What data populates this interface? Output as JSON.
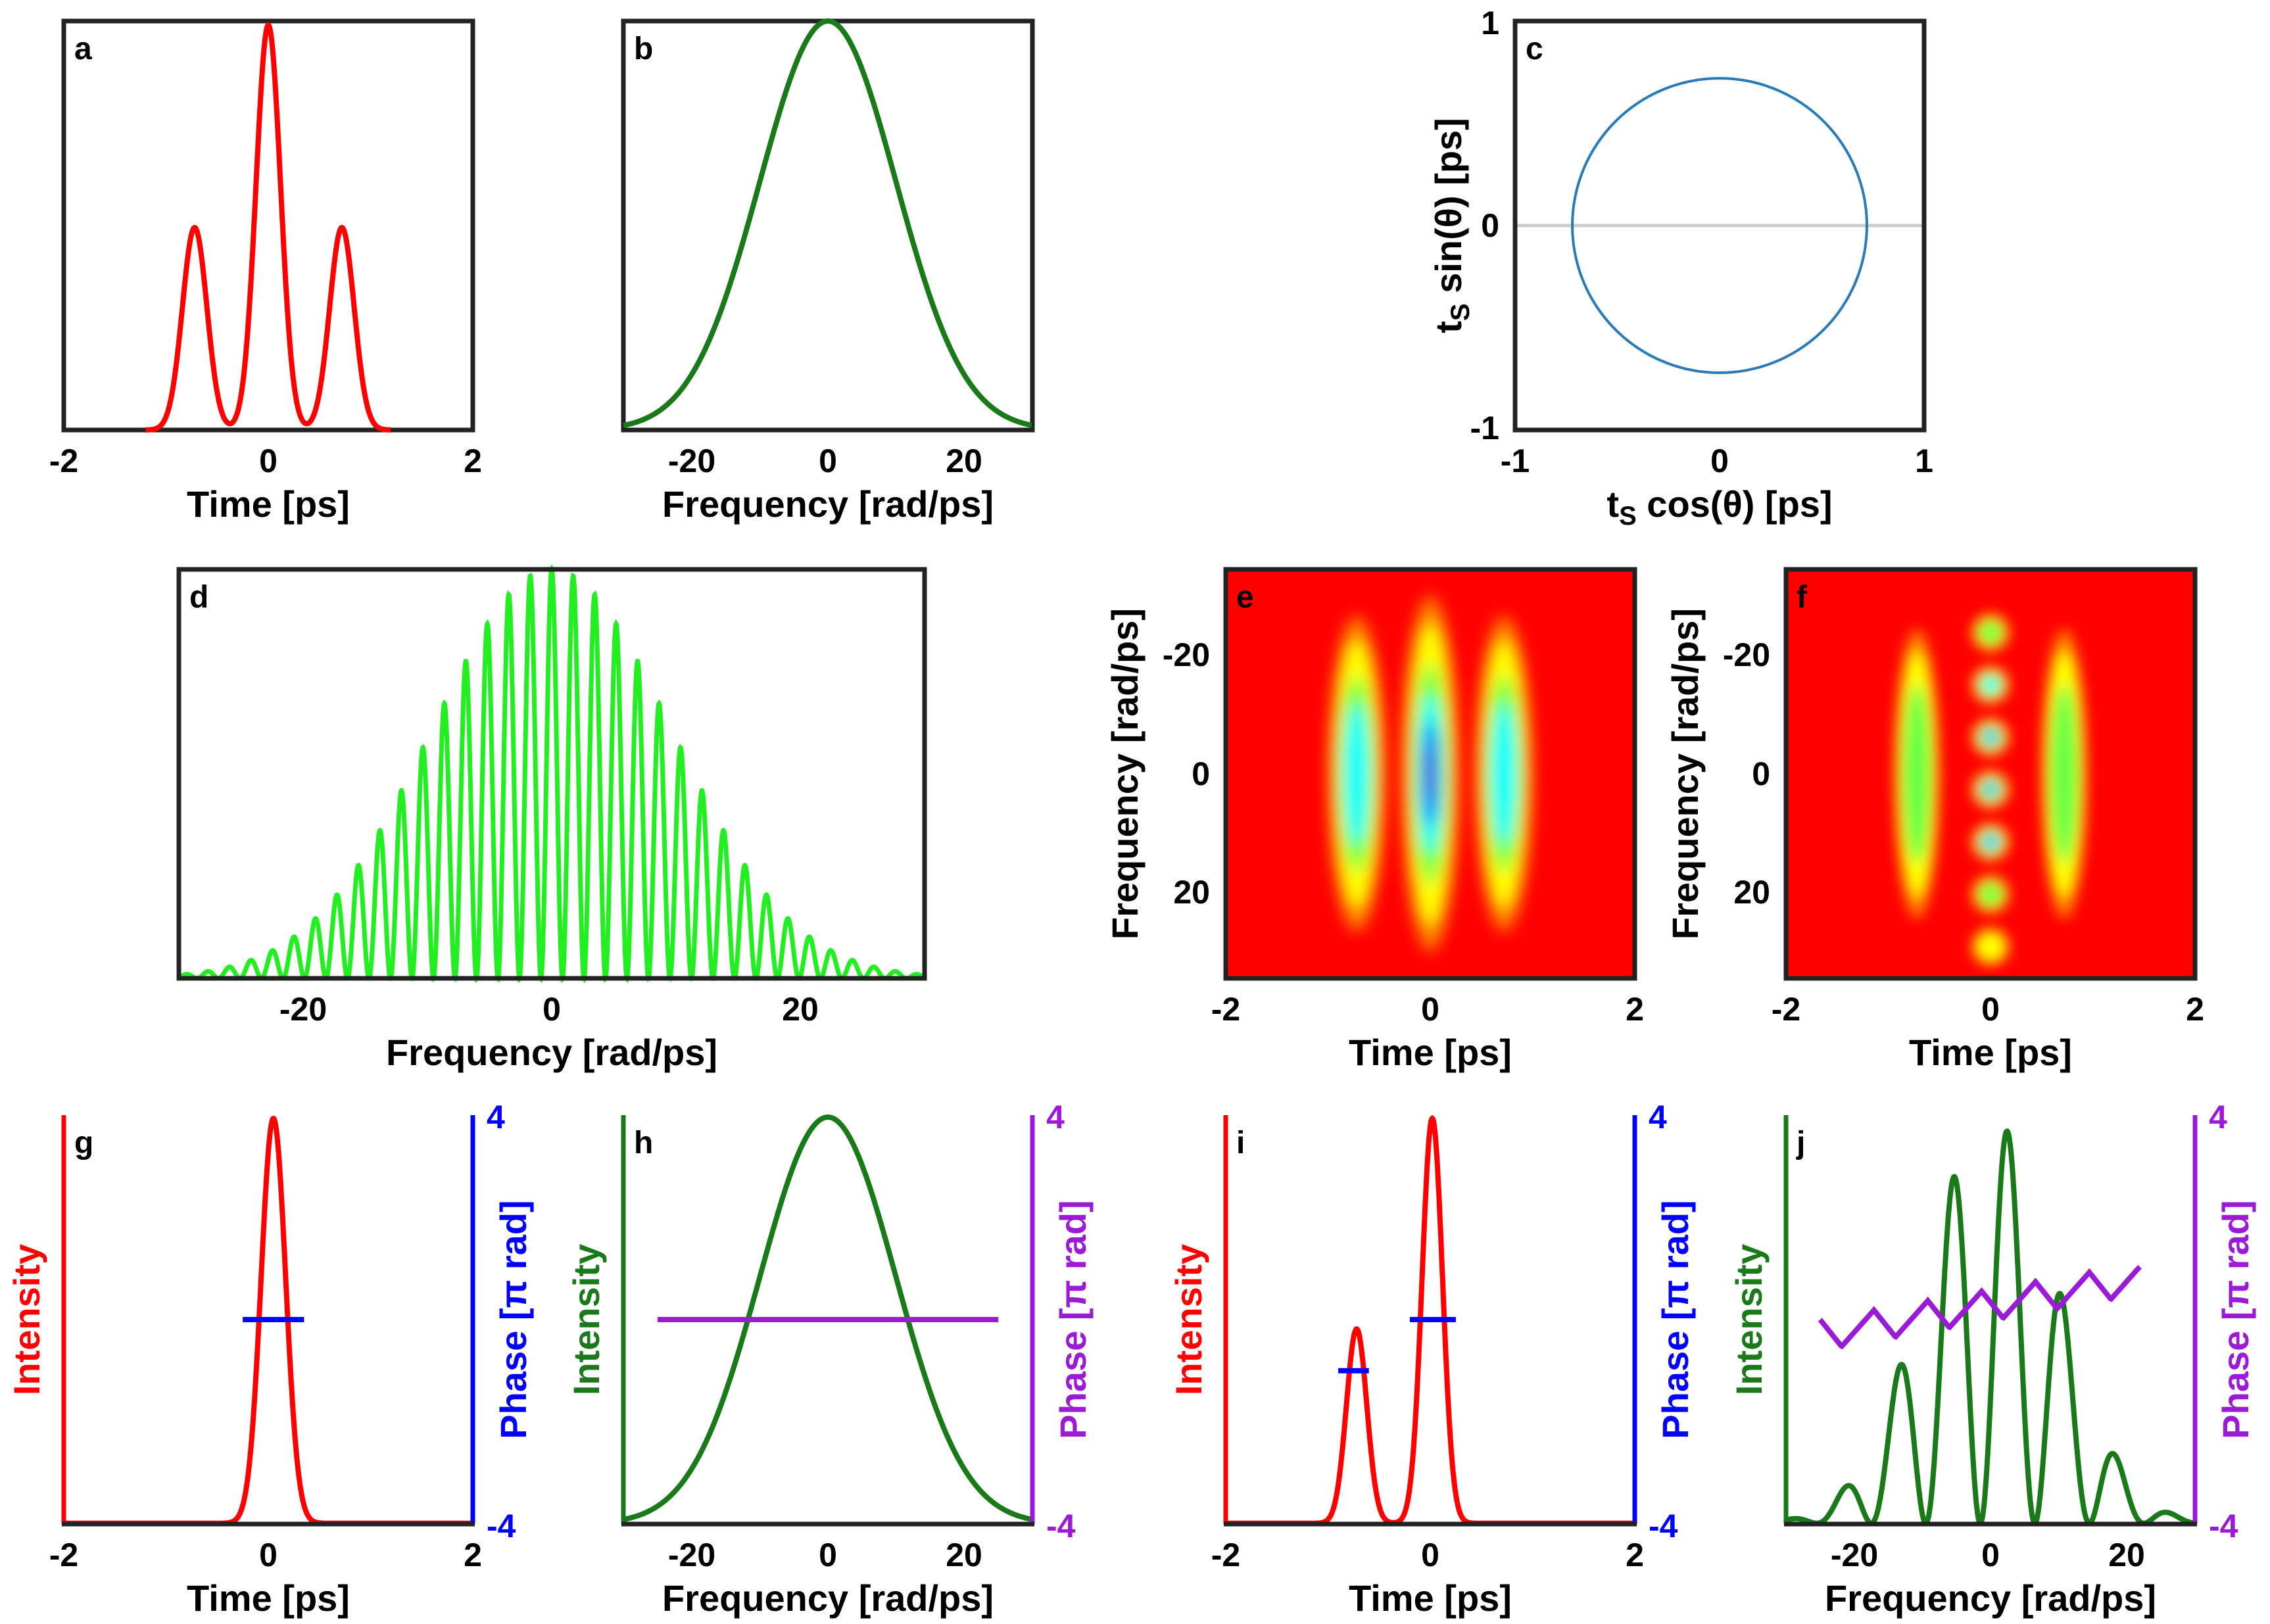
{
  "panels": {
    "a": {
      "letter": "a",
      "xlabel": "Time [ps]",
      "xticks": [
        "-2",
        "0",
        "2"
      ]
    },
    "b": {
      "letter": "b",
      "xlabel": "Frequency [rad/ps]",
      "xticks": [
        "-20",
        "0",
        "20"
      ]
    },
    "c": {
      "letter": "c",
      "xlabel": "t",
      "xlabel_sub": "S",
      "xlabel_rest": " cos(θ) [ps]",
      "ylabel": "t",
      "ylabel_sub": "S",
      "ylabel_rest": " sin(θ) [ps]",
      "xticks": [
        "-1",
        "0",
        "1"
      ],
      "yticks": [
        "1",
        "0",
        "-1"
      ]
    },
    "d": {
      "letter": "d",
      "xlabel": "Frequency [rad/ps]",
      "xticks": [
        "-20",
        "0",
        "20"
      ]
    },
    "e": {
      "letter": "e",
      "xlabel": "Time [ps]",
      "ylabel": "Frequency [rad/ps]",
      "xticks": [
        "-2",
        "0",
        "2"
      ],
      "yticks": [
        "-20",
        "0",
        "20"
      ]
    },
    "f": {
      "letter": "f",
      "xlabel": "Time [ps]",
      "ylabel": "Frequency [rad/ps]",
      "xticks": [
        "-2",
        "0",
        "2"
      ],
      "yticks": [
        "-20",
        "0",
        "20"
      ]
    },
    "g": {
      "letter": "g",
      "xlabel": "Time [ps]",
      "ylabel_left": "Intensity",
      "ylabel_right": "Phase [π rad]",
      "xticks": [
        "-2",
        "0",
        "2"
      ],
      "yticks_right": [
        "4",
        "-4"
      ]
    },
    "h": {
      "letter": "h",
      "xlabel": "Frequency [rad/ps]",
      "ylabel_left": "Intensity",
      "ylabel_right": "Phase [π rad]",
      "xticks": [
        "-20",
        "0",
        "20"
      ],
      "yticks_right": [
        "4",
        "-4"
      ]
    },
    "i": {
      "letter": "i",
      "xlabel": "Time [ps]",
      "ylabel_left": "Intensity",
      "ylabel_right": "Phase [π rad]",
      "xticks": [
        "-2",
        "0",
        "2"
      ],
      "yticks_right": [
        "4",
        "-4"
      ]
    },
    "j": {
      "letter": "j",
      "xlabel": "Frequency [rad/ps]",
      "ylabel_left": "Intensity",
      "ylabel_right": "Phase [π rad]",
      "xticks": [
        "-20",
        "0",
        "20"
      ],
      "yticks_right": [
        "4",
        "-4"
      ]
    }
  },
  "colors": {
    "time_intensity": "#ff0000",
    "freq_intensity": "#1a7a1a",
    "spectrum_d": "#22ee22",
    "circle": "#2a7ab8",
    "time_phase": "#0000ff",
    "freq_phase": "#9a1ad6",
    "wigner_bg": "#ff0000"
  },
  "chart_data": [
    {
      "id": "a",
      "type": "line",
      "x": [
        -1.2,
        -0.72,
        -0.36,
        0,
        0.36,
        0.72,
        1.2
      ],
      "y": [
        0,
        0.5,
        0,
        1,
        0,
        0.5,
        0
      ],
      "xlim": [
        -2,
        2
      ],
      "ylim": [
        0,
        1
      ],
      "series": [
        {
          "peaks": [
            {
              "t": -0.72,
              "amp": 0.5
            },
            {
              "t": 0,
              "amp": 1.0
            },
            {
              "t": 0.72,
              "amp": 0.5
            }
          ],
          "width_ps": 0.12
        }
      ]
    },
    {
      "id": "b",
      "type": "line",
      "xlim": [
        -30,
        30
      ],
      "ylim": [
        0,
        1
      ],
      "series": [
        {
          "gaussian_center": 0,
          "sigma": 10,
          "amp": 1
        }
      ]
    },
    {
      "id": "c",
      "type": "line",
      "xlim": [
        -1,
        1
      ],
      "ylim": [
        -1,
        1
      ],
      "grid": true,
      "series": [
        {
          "circle_radius": 0.72
        }
      ]
    },
    {
      "id": "d",
      "type": "line",
      "xlim": [
        -30,
        30
      ],
      "ylim": [
        0,
        1
      ],
      "series": [
        {
          "envelope_sigma": 9.7,
          "fringe_period": 1.73,
          "fringe_center": 0
        }
      ]
    },
    {
      "id": "e",
      "type": "heatmap",
      "xlim": [
        -2,
        2
      ],
      "ylim": [
        -35,
        35
      ],
      "blobs": [
        {
          "t": -0.72,
          "f": 0,
          "amp": 0.55
        },
        {
          "t": 0,
          "f": 0,
          "amp": 1.0
        },
        {
          "t": 0.72,
          "f": 0,
          "amp": 0.55
        }
      ]
    },
    {
      "id": "f",
      "type": "heatmap",
      "xlim": [
        -2,
        2
      ],
      "ylim": [
        -35,
        35
      ],
      "blobs": [
        {
          "t": -0.72,
          "f": 0,
          "amp": 0.4
        },
        {
          "t": 0.72,
          "f": 0,
          "amp": 0.4
        }
      ],
      "fringes": {
        "t": 0,
        "period": 8.7,
        "amp": 0.85
      }
    },
    {
      "id": "g",
      "type": "line",
      "xlim": [
        -2,
        2
      ],
      "ylim_right": [
        -4,
        4
      ],
      "series": [
        {
          "peak_t": 0.05,
          "amp": 1,
          "width_ps": 0.12
        },
        {
          "phase_x": [
            -0.25,
            0.35
          ],
          "phase_y": 0
        }
      ]
    },
    {
      "id": "h",
      "type": "line",
      "xlim": [
        -30,
        30
      ],
      "ylim_right": [
        -4,
        4
      ],
      "series": [
        {
          "gaussian_center": 0,
          "sigma": 10,
          "amp": 1
        },
        {
          "phase_x": [
            -25,
            25
          ],
          "phase_y": 0
        }
      ]
    },
    {
      "id": "i",
      "type": "line",
      "xlim": [
        -2,
        2
      ],
      "ylim_right": [
        -4,
        4
      ],
      "series": [
        {
          "peaks": [
            {
              "t": -0.72,
              "amp": 0.48
            },
            {
              "t": 0.02,
              "amp": 1.0
            }
          ],
          "width_ps": 0.1
        },
        {
          "phase_segments": [
            {
              "x": [
                -0.9,
                -0.6
              ],
              "y": -1
            },
            {
              "x": -0.2,
              "x2": 0.25,
              "y": 0
            }
          ]
        }
      ]
    },
    {
      "id": "j",
      "type": "line",
      "xlim": [
        -30,
        30
      ],
      "ylim_right": [
        -4,
        4
      ],
      "series": [
        {
          "envelope_sigma": 9.7,
          "fringe_period": 8.0,
          "phase_offset": 0.5
        },
        {
          "phase_ramp": {
            "x": [
              -25,
              22
            ],
            "y": [
              -0.3,
              0.8
            ],
            "period": 7.9,
            "ripple": 0.6
          }
        }
      ]
    }
  ]
}
